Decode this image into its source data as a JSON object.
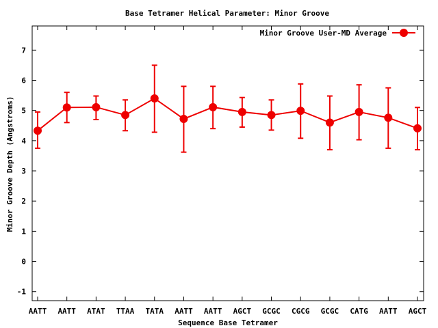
{
  "chart_data": {
    "type": "line",
    "title": "Base Tetramer Helical Parameter: Minor Groove",
    "xlabel": "Sequence Base Tetramer",
    "ylabel": "Minor Groove Depth (Angstroms)",
    "ylim": [
      -1.3,
      7.8
    ],
    "yticks": [
      -1,
      0,
      1,
      2,
      3,
      4,
      5,
      6,
      7
    ],
    "grid": false,
    "legend_position": "top-right",
    "categories": [
      "AATT",
      "AATT",
      "ATAT",
      "TTAA",
      "TATA",
      "AATT",
      "AATT",
      "AGCT",
      "GCGC",
      "CGCG",
      "GCGC",
      "CATG",
      "AATT",
      "AGCT"
    ],
    "series": [
      {
        "name": "Minor Groove User-MD Average",
        "color": "#ee0000",
        "marker": "circle",
        "values": [
          4.33,
          5.1,
          5.11,
          4.85,
          5.4,
          4.72,
          5.11,
          4.95,
          4.85,
          4.99,
          4.6,
          4.95,
          4.76,
          4.41
        ],
        "err_low": [
          3.75,
          4.6,
          4.7,
          4.33,
          4.28,
          3.62,
          4.4,
          4.45,
          4.35,
          4.08,
          3.7,
          4.03,
          3.75,
          3.7
        ],
        "err_high": [
          4.95,
          5.6,
          5.48,
          5.35,
          6.5,
          5.8,
          5.8,
          5.43,
          5.35,
          5.88,
          5.48,
          5.85,
          5.75,
          5.1
        ]
      }
    ]
  }
}
